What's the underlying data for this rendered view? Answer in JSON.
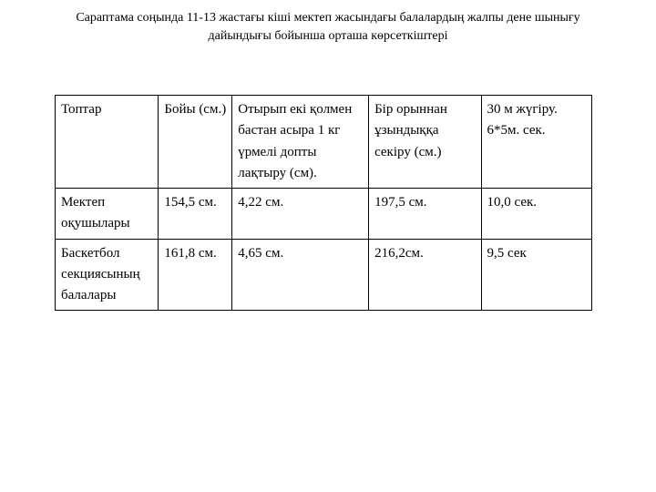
{
  "title": "Сараптама соңында 11-13 жастағы кіші мектеп жасындағы балалардың жалпы дене шынығу дайындығы бойынша орташа көрсеткіштері",
  "table": {
    "columns": [
      "Топтар",
      "Бойы (см.)",
      "Отырып екі қолмен бастан асыра 1 кг үрмелі допты лақтыру (см).",
      "Бір орыннан ұзындыққа секіру (см.)",
      "30 м жүгіру. 6*5м. сек."
    ],
    "rows": [
      {
        "label": "Мектеп оқушылары",
        "cells": [
          "154,5 см.",
          "4,22 см.",
          "197,5 см.",
          "10,0 сек."
        ]
      },
      {
        "label": "Баскетбол секциясының балалары",
        "cells": [
          "161,8 см.",
          "4,65 см.",
          "216,2см.",
          "9,5 сек"
        ]
      }
    ]
  }
}
